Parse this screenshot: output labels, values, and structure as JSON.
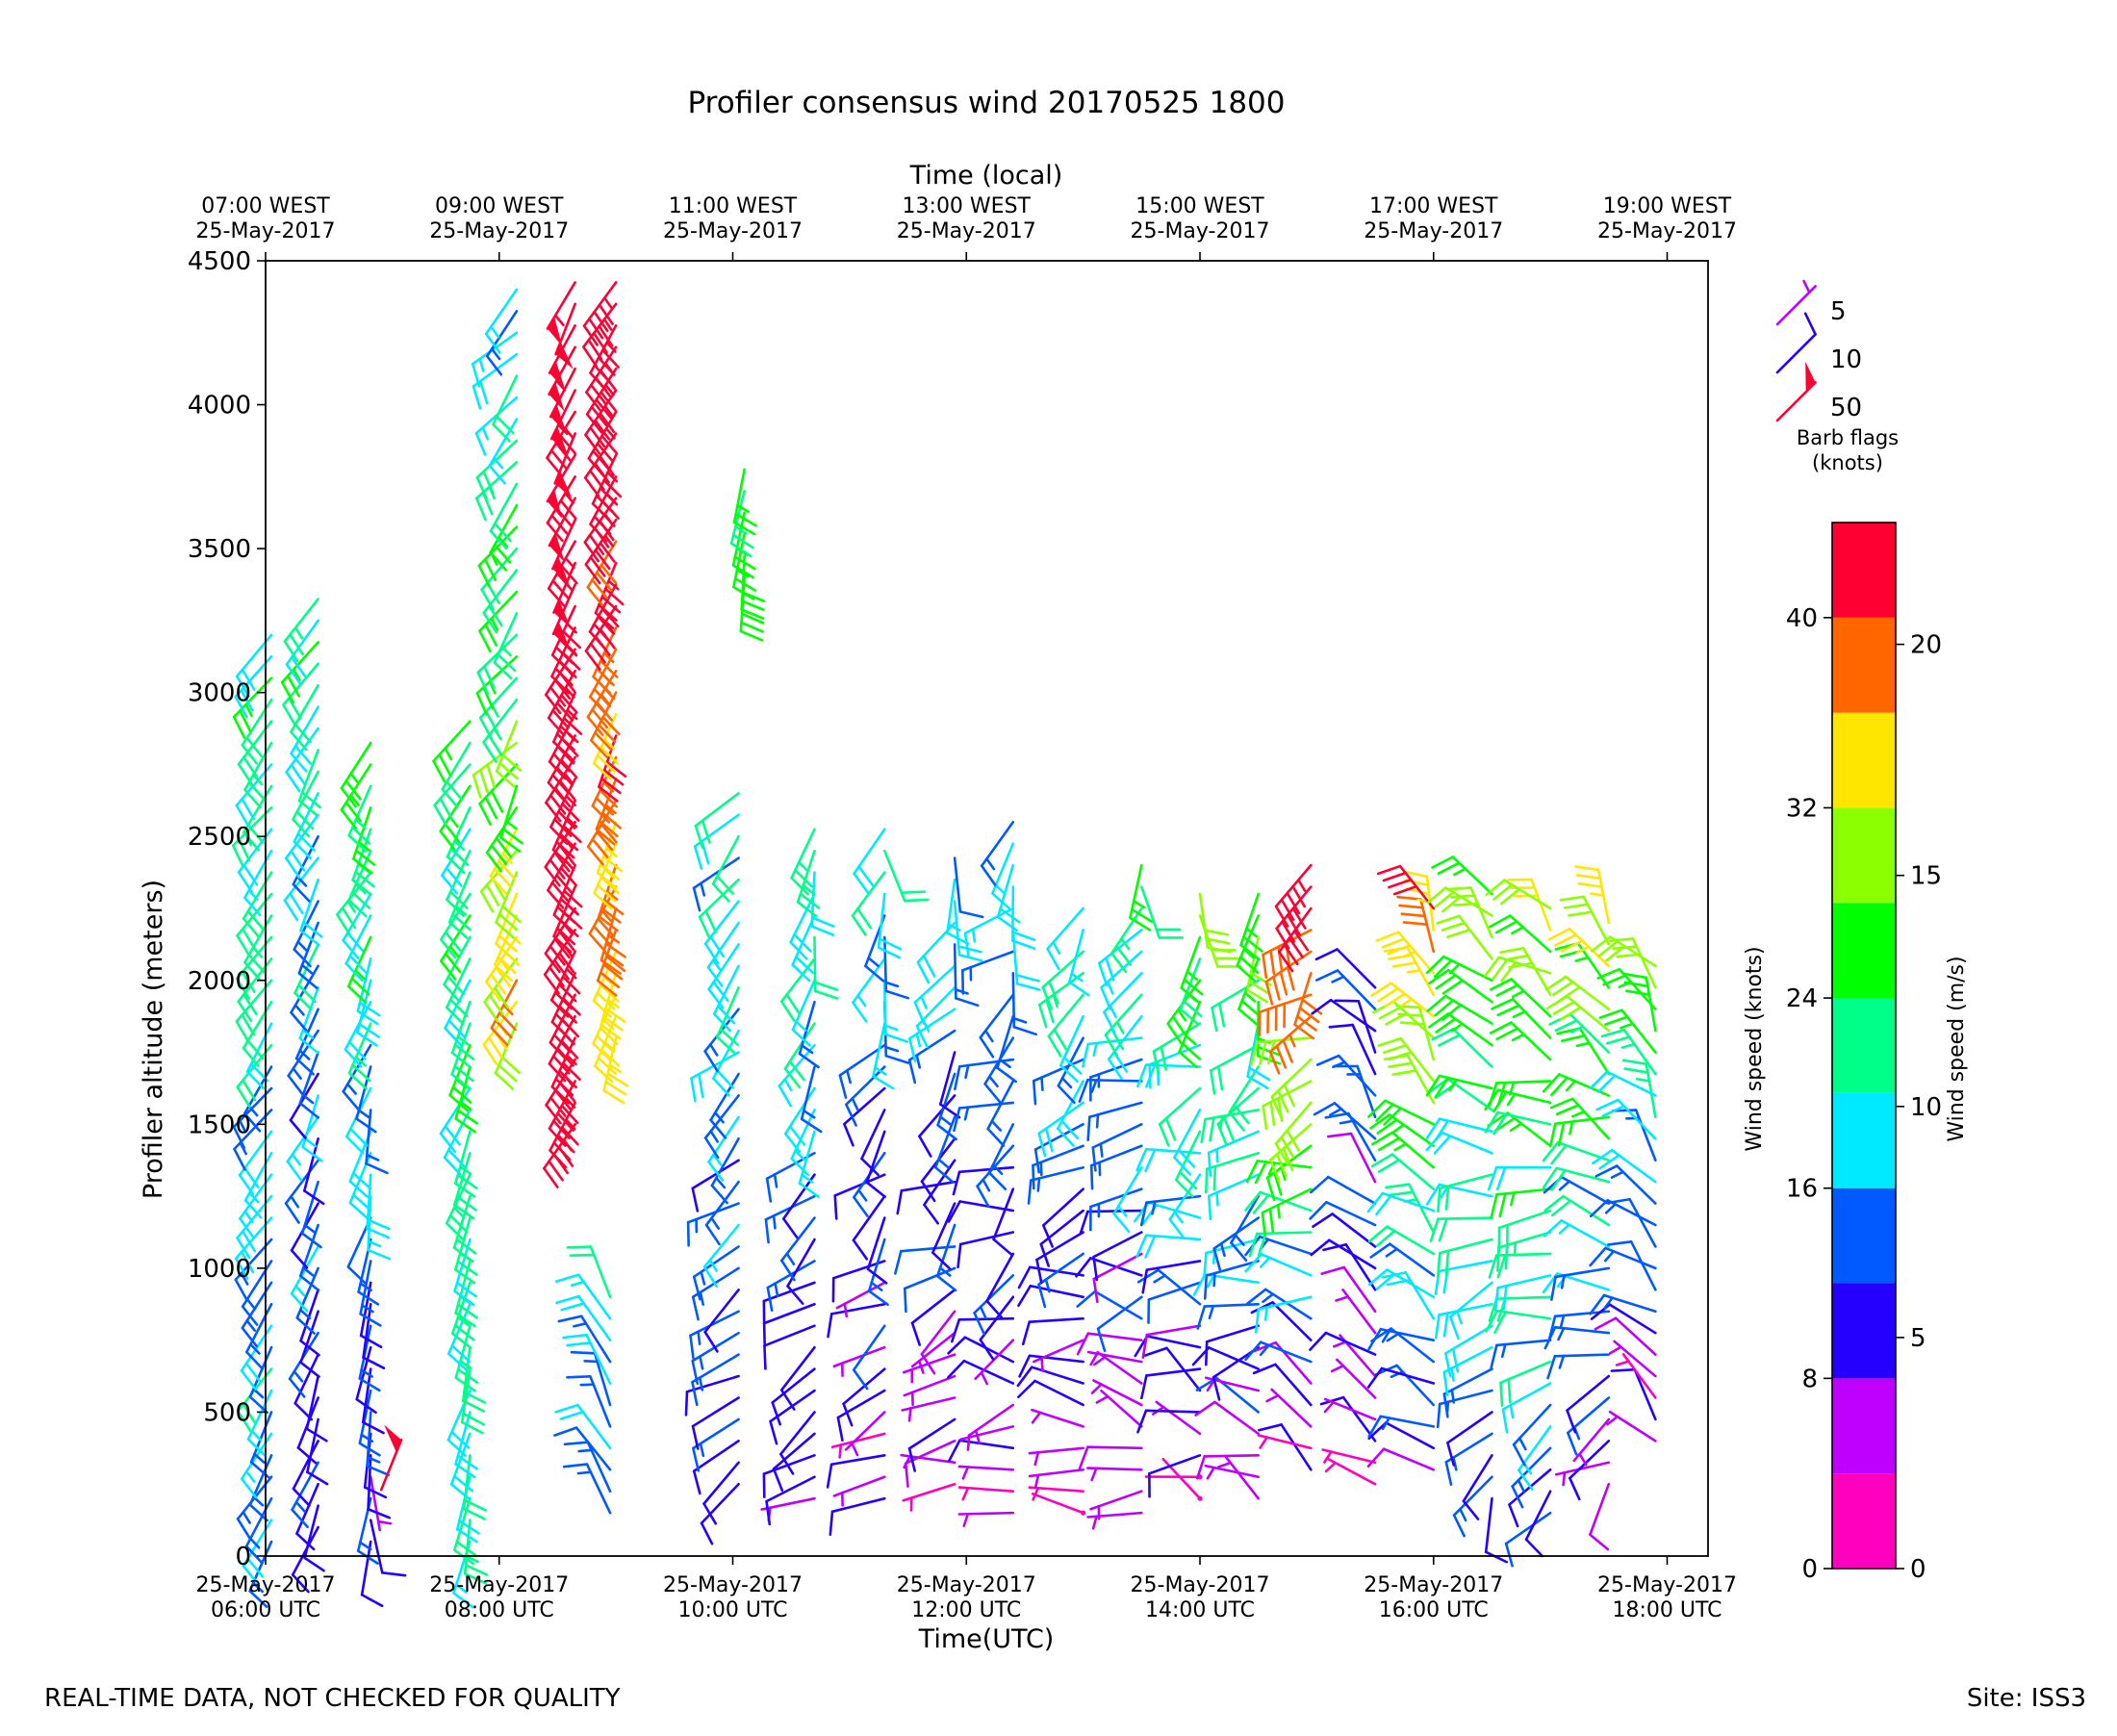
{
  "chart_data": {
    "type": "wind-barb time-height",
    "title": "Profiler consensus wind 20170525 1800",
    "top_axis_label": "Time (local)",
    "top_ticks": [
      {
        "hour": 6,
        "line1": "07:00 WEST",
        "line2": "25-May-2017"
      },
      {
        "hour": 8,
        "line1": "09:00 WEST",
        "line2": "25-May-2017"
      },
      {
        "hour": 10,
        "line1": "11:00 WEST",
        "line2": "25-May-2017"
      },
      {
        "hour": 12,
        "line1": "13:00 WEST",
        "line2": "25-May-2017"
      },
      {
        "hour": 14,
        "line1": "15:00 WEST",
        "line2": "25-May-2017"
      },
      {
        "hour": 16,
        "line1": "17:00 WEST",
        "line2": "25-May-2017"
      },
      {
        "hour": 18,
        "line1": "19:00 WEST",
        "line2": "25-May-2017"
      }
    ],
    "bottom_axis_label": "Time(UTC)",
    "bottom_ticks": [
      {
        "hour": 6,
        "line1": "25-May-2017",
        "line2": "06:00 UTC"
      },
      {
        "hour": 8,
        "line1": "25-May-2017",
        "line2": "08:00 UTC"
      },
      {
        "hour": 10,
        "line1": "25-May-2017",
        "line2": "10:00 UTC"
      },
      {
        "hour": 12,
        "line1": "25-May-2017",
        "line2": "12:00 UTC"
      },
      {
        "hour": 14,
        "line1": "25-May-2017",
        "line2": "14:00 UTC"
      },
      {
        "hour": 16,
        "line1": "25-May-2017",
        "line2": "16:00 UTC"
      },
      {
        "hour": 18,
        "line1": "25-May-2017",
        "line2": "18:00 UTC"
      }
    ],
    "xlim_hours_utc": [
      6,
      18.35
    ],
    "ylabel": "Profiler altitude (meters)",
    "ylim": [
      0,
      4500
    ],
    "yticks": [
      0,
      500,
      1000,
      1500,
      2000,
      2500,
      3000,
      3500,
      4000,
      4500
    ],
    "colorbar": {
      "label_left": "Wind speed (knots)",
      "label_right": "Wind speed (m/s)",
      "bin_edges_knots": [
        0,
        4,
        8,
        12,
        16,
        20,
        24,
        28,
        32,
        36,
        40,
        44
      ],
      "colors": [
        "#ff00bf",
        "#bf00ff",
        "#2600ff",
        "#005aff",
        "#00eaff",
        "#00ff88",
        "#00ff00",
        "#8cff00",
        "#ffe600",
        "#ff6600",
        "#ff0033"
      ],
      "knot_ticks": [
        0,
        8,
        16,
        24,
        32,
        40
      ],
      "ms_ticks": [
        0,
        5,
        10,
        15,
        20
      ],
      "knots_per_ms": 1.9438
    },
    "legend": {
      "title_line1": "Barb flags",
      "title_line2": "(knots)",
      "items": [
        {
          "label": "5",
          "speed_knots": 5,
          "color": "#bf00ff"
        },
        {
          "label": "10",
          "speed_knots": 10,
          "color": "#2600ff"
        },
        {
          "label": "50",
          "speed_knots": 50,
          "color": "#ff0033"
        }
      ]
    },
    "profiles": [
      {
        "time": 6.05,
        "alt_min": 50,
        "alt_max": 3250,
        "dir_hi": 220,
        "spd_hi": 11,
        "dir_lo": 210,
        "spd_lo": 8,
        "jitter": 10
      },
      {
        "time": 6.45,
        "alt_min": 100,
        "alt_max": 3350,
        "dir_hi": 215,
        "spd_hi": 11,
        "dir_lo": 200,
        "spd_lo": 5,
        "jitter": 12
      },
      {
        "time": 6.9,
        "alt_min": 50,
        "alt_max": 2850,
        "dir_hi": 215,
        "spd_hi": 13,
        "dir_lo": 180,
        "spd_lo": 5,
        "jitter": 14
      },
      {
        "time": 7.75,
        "alt_min": 50,
        "alt_max": 2950,
        "dir_hi": 215,
        "spd_hi": 12,
        "dir_lo": 190,
        "spd_lo": 10,
        "jitter": 10
      },
      {
        "time": 8.15,
        "alt_min": 1850,
        "alt_max": 4400,
        "dir_hi": 225,
        "spd_hi": 8,
        "dir_lo": 210,
        "spd_lo": 18,
        "jitter": 18
      },
      {
        "time": 8.65,
        "alt_min": 1500,
        "alt_max": 4450,
        "dir_hi": 205,
        "spd_hi": 26,
        "dir_lo": 210,
        "spd_lo": 22,
        "jitter": 6
      },
      {
        "time": 9.0,
        "alt_min": 1800,
        "alt_max": 4450,
        "dir_hi": 215,
        "spd_hi": 24,
        "dir_lo": 200,
        "spd_lo": 17,
        "jitter": 8
      },
      {
        "time": 8.95,
        "alt_min": 150,
        "alt_max": 900,
        "dir_hi": 340,
        "spd_hi": 9,
        "dir_lo": 330,
        "spd_lo": 7,
        "jitter": 15
      },
      {
        "time": 10.05,
        "alt_min": 250,
        "alt_max": 2650,
        "dir_hi": 215,
        "spd_hi": 10,
        "dir_lo": 240,
        "spd_lo": 5,
        "jitter": 20
      },
      {
        "time": 10.1,
        "alt_min": 3400,
        "alt_max": 3800,
        "dir_hi": 195,
        "spd_hi": 12,
        "dir_lo": 190,
        "spd_lo": 15,
        "jitter": 8
      },
      {
        "time": 10.7,
        "alt_min": 200,
        "alt_max": 2550,
        "dir_hi": 195,
        "spd_hi": 11,
        "dir_lo": 240,
        "spd_lo": 4,
        "jitter": 25
      },
      {
        "time": 11.3,
        "alt_min": 200,
        "alt_max": 2550,
        "dir_hi": 185,
        "spd_hi": 10,
        "dir_lo": 250,
        "spd_lo": 3,
        "jitter": 30
      },
      {
        "time": 11.9,
        "alt_min": 250,
        "alt_max": 2450,
        "dir_hi": 190,
        "spd_hi": 8,
        "dir_lo": 260,
        "spd_lo": 3,
        "jitter": 35
      },
      {
        "time": 12.4,
        "alt_min": 150,
        "alt_max": 2550,
        "dir_hi": 195,
        "spd_hi": 10,
        "dir_lo": 280,
        "spd_lo": 2,
        "jitter": 40
      },
      {
        "time": 13.0,
        "alt_min": 150,
        "alt_max": 2300,
        "dir_hi": 200,
        "spd_hi": 11,
        "dir_lo": 290,
        "spd_lo": 2,
        "jitter": 40
      },
      {
        "time": 13.5,
        "alt_min": 150,
        "alt_max": 2450,
        "dir_hi": 200,
        "spd_hi": 12,
        "dir_lo": 280,
        "spd_lo": 2,
        "jitter": 45
      },
      {
        "time": 14.0,
        "alt_min": 200,
        "alt_max": 2350,
        "dir_hi": 200,
        "spd_hi": 15,
        "dir_lo": 300,
        "spd_lo": 2,
        "jitter": 45
      },
      {
        "time": 14.5,
        "alt_min": 200,
        "alt_max": 2350,
        "dir_hi": 195,
        "spd_hi": 14,
        "dir_lo": 290,
        "spd_lo": 3,
        "jitter": 35
      },
      {
        "time": 14.95,
        "alt_min": 300,
        "alt_max": 2450,
        "dir_hi": 205,
        "spd_hi": 22,
        "dir_lo": 310,
        "spd_lo": 3,
        "jitter": 30
      },
      {
        "time": 15.5,
        "alt_min": 250,
        "alt_max": 2000,
        "dir_hi": 330,
        "spd_hi": 7,
        "dir_lo": 300,
        "spd_lo": 3,
        "jitter": 25
      },
      {
        "time": 16.0,
        "alt_min": 300,
        "alt_max": 2300,
        "dir_hi": 330,
        "spd_hi": 20,
        "dir_lo": 300,
        "spd_lo": 4,
        "jitter": 25
      },
      {
        "time": 16.5,
        "alt_min": 200,
        "alt_max": 2350,
        "dir_hi": 330,
        "spd_hi": 15,
        "dir_lo": 210,
        "spd_lo": 6,
        "jitter": 25
      },
      {
        "time": 17.0,
        "alt_min": 150,
        "alt_max": 2250,
        "dir_hi": 320,
        "spd_hi": 16,
        "dir_lo": 225,
        "spd_lo": 6,
        "jitter": 25
      },
      {
        "time": 17.5,
        "alt_min": 250,
        "alt_max": 2200,
        "dir_hi": 325,
        "spd_hi": 17,
        "dir_lo": 230,
        "spd_lo": 3,
        "jitter": 30
      },
      {
        "time": 17.9,
        "alt_min": 400,
        "alt_max": 2050,
        "dir_hi": 330,
        "spd_hi": 14,
        "dir_lo": 310,
        "spd_lo": 3,
        "jitter": 30
      }
    ],
    "footer_left": "REAL-TIME DATA, NOT CHECKED FOR QUALITY",
    "footer_right": "Site: ISS3"
  }
}
